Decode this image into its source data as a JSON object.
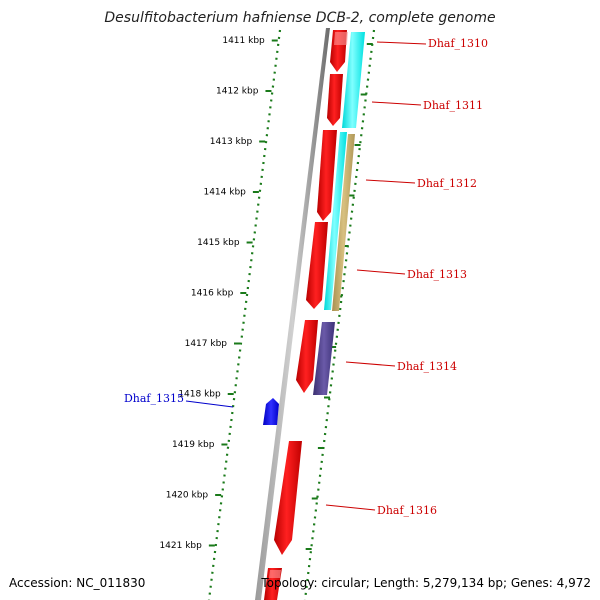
{
  "title": "Desulfitobacterium hafniense DCB-2, complete genome",
  "footer": {
    "accession": "Accession: NC_011830",
    "topology": "Topology: circular; Length: 5,279,134 bp; Genes: 4,972"
  },
  "scale_ticks": [
    "1411 kbp",
    "1412 kbp",
    "1413 kbp",
    "1414 kbp",
    "1415 kbp",
    "1416 kbp",
    "1417 kbp",
    "1418 kbp",
    "1419 kbp",
    "1420 kbp",
    "1421 kbp"
  ],
  "genes": [
    {
      "id": "Dhaf_1310",
      "color": "#cc0000"
    },
    {
      "id": "Dhaf_1311",
      "color": "#cc0000"
    },
    {
      "id": "Dhaf_1312",
      "color": "#cc0000"
    },
    {
      "id": "Dhaf_1313",
      "color": "#cc0000"
    },
    {
      "id": "Dhaf_1314",
      "color": "#cc0000"
    },
    {
      "id": "Dhaf_1315",
      "color": "#0000cc"
    },
    {
      "id": "Dhaf_1316",
      "color": "#cc0000"
    }
  ],
  "colors": {
    "forward_strand": "#ff0000",
    "reverse_strand": "#0000ff",
    "cyan_track": "#00ffff",
    "tan_track": "#c8b070",
    "purple_track": "#4b3f8a",
    "dotted_track": "#1a7a1a",
    "axis": "#808080"
  }
}
